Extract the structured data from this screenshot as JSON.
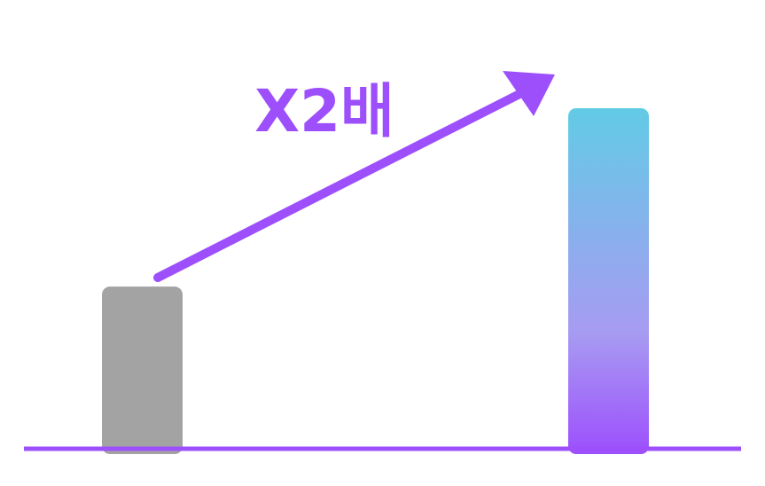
{
  "chart_data": {
    "type": "bar",
    "categories": [
      "",
      ""
    ],
    "values": [
      1,
      2.1
    ],
    "ylim": [
      0,
      2.1
    ],
    "grid": false,
    "annotation": "X2배",
    "colors": {
      "bar_1": "#a3a3a3",
      "bar_2_top": "#62cbe6",
      "bar_2_middle": "#a79bf2",
      "bar_2_bottom": "#9d4ffc",
      "accent": "#9d4ffc",
      "baseline": "#9d4ffc"
    }
  }
}
